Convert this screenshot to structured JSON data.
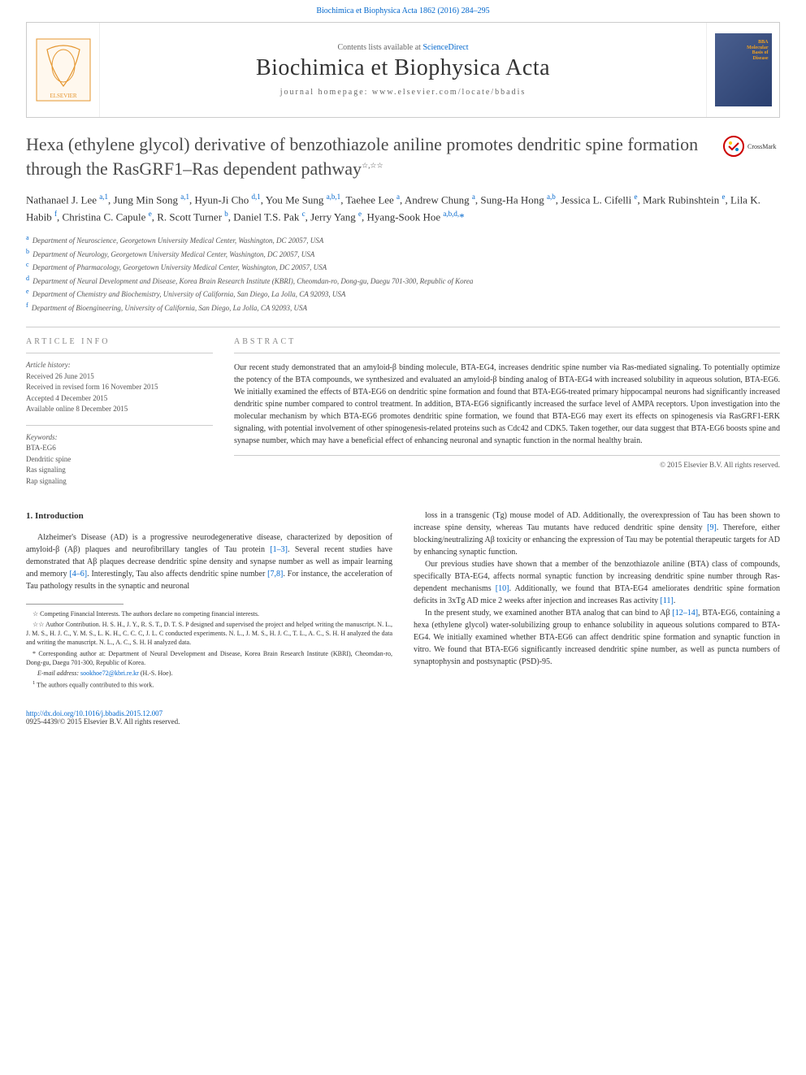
{
  "top_link": {
    "prefix": "",
    "text": "Biochimica et Biophysica Acta 1862 (2016) 284–295"
  },
  "header": {
    "contents_prefix": "Contents lists available at ",
    "contents_link": "ScienceDirect",
    "journal_title": "Biochimica et Biophysica Acta",
    "homepage_label": "journal homepage: www.elsevier.com/locate/bbadis",
    "cover_label_1": "BBA",
    "cover_label_2": "Molecular",
    "cover_label_3": "Basis of",
    "cover_label_4": "Disease"
  },
  "crossmark_label": "CrossMark",
  "article": {
    "title": "Hexa (ethylene glycol) derivative of benzothiazole aniline promotes dendritic spine formation through the RasGRF1–Ras dependent pathway",
    "title_stars": "☆,☆☆",
    "authors_html": "Nathanael J. Lee <sup>a,1</sup>, Jung Min Song <sup>a,1</sup>, Hyun-Ji Cho <sup>d,1</sup>, You Me Sung <sup>a,b,1</sup>, Taehee Lee <sup>a</sup>, Andrew Chung <sup>a</sup>, Sung-Ha Hong <sup>a,b</sup>, Jessica L. Cifelli <sup>e</sup>, Mark Rubinshtein <sup>e</sup>, Lila K. Habib <sup>f</sup>, Christina C. Capule <sup>e</sup>, R. Scott Turner <sup>b</sup>, Daniel T.S. Pak <sup>c</sup>, Jerry Yang <sup>e</sup>, Hyang-Sook Hoe <sup>a,b,d,</sup><span class='author-corr'>*</span>",
    "affiliations": [
      {
        "sup": "a",
        "text": "Department of Neuroscience, Georgetown University Medical Center, Washington, DC 20057, USA"
      },
      {
        "sup": "b",
        "text": "Department of Neurology, Georgetown University Medical Center, Washington, DC 20057, USA"
      },
      {
        "sup": "c",
        "text": "Department of Pharmacology, Georgetown University Medical Center, Washington, DC 20057, USA"
      },
      {
        "sup": "d",
        "text": "Department of Neural Development and Disease, Korea Brain Research Institute (KBRI), Cheomdan-ro, Dong-gu, Daegu 701-300, Republic of Korea"
      },
      {
        "sup": "e",
        "text": "Department of Chemistry and Biochemistry, University of California, San Diego, La Jolla, CA 92093, USA"
      },
      {
        "sup": "f",
        "text": "Department of Bioengineering, University of California, San Diego, La Jolla, CA 92093, USA"
      }
    ]
  },
  "info": {
    "heading": "article info",
    "history_label": "Article history:",
    "received": "Received 26 June 2015",
    "revised": "Received in revised form 16 November 2015",
    "accepted": "Accepted 4 December 2015",
    "online": "Available online 8 December 2015",
    "keywords_label": "Keywords:",
    "keywords": [
      "BTA-EG6",
      "Dendritic spine",
      "Ras signaling",
      "Rap signaling"
    ]
  },
  "abstract": {
    "heading": "abstract",
    "text": "Our recent study demonstrated that an amyloid-β binding molecule, BTA-EG4, increases dendritic spine number via Ras-mediated signaling. To potentially optimize the potency of the BTA compounds, we synthesized and evaluated an amyloid-β binding analog of BTA-EG4 with increased solubility in aqueous solution, BTA-EG6. We initially examined the effects of BTA-EG6 on dendritic spine formation and found that BTA-EG6-treated primary hippocampal neurons had significantly increased dendritic spine number compared to control treatment. In addition, BTA-EG6 significantly increased the surface level of AMPA receptors. Upon investigation into the molecular mechanism by which BTA-EG6 promotes dendritic spine formation, we found that BTA-EG6 may exert its effects on spinogenesis via RasGRF1-ERK signaling, with potential involvement of other spinogenesis-related proteins such as Cdc42 and CDK5. Taken together, our data suggest that BTA-EG6 boosts spine and synapse number, which may have a beneficial effect of enhancing neuronal and synaptic function in the normal healthy brain.",
    "copyright": "© 2015 Elsevier B.V. All rights reserved."
  },
  "body": {
    "heading": "1. Introduction",
    "p1": "Alzheimer's Disease (AD) is a progressive neurodegenerative disease, characterized by deposition of amyloid-β (Aβ) plaques and neurofibrillary tangles of Tau protein ",
    "c1": "[1–3]",
    "p1b": ". Several recent studies have demonstrated that Aβ plaques decrease dendritic spine density and synapse number as well as impair learning and memory ",
    "c2": "[4–6]",
    "p1c": ". Interestingly, Tau also affects dendritic spine number ",
    "c3": "[7,8]",
    "p1d": ". For instance, the acceleration of Tau pathology results in the synaptic and neuronal",
    "p2a": "loss in a transgenic (Tg) mouse model of AD. Additionally, the overexpression of Tau has been shown to increase spine density, whereas Tau mutants have reduced dendritic spine density ",
    "c4": "[9]",
    "p2b": ". Therefore, either blocking/neutralizing Aβ toxicity or enhancing the expression of Tau may be potential therapeutic targets for AD by enhancing synaptic function.",
    "p3a": "Our previous studies have shown that a member of the benzothiazole aniline (BTA) class of compounds, specifically BTA-EG4, affects normal synaptic function by increasing dendritic spine number through Ras-dependent mechanisms ",
    "c5": "[10]",
    "p3b": ". Additionally, we found that BTA-EG4 ameliorates dendritic spine formation deficits in 3xTg AD mice 2 weeks after injection and increases Ras activity ",
    "c6": "[11]",
    "p3c": ".",
    "p4a": "In the present study, we examined another BTA analog that can bind to Aβ ",
    "c7": "[12–14]",
    "p4b": ", BTA-EG6, containing a hexa (ethylene glycol) water-solubilizing group to enhance solubility in aqueous solutions compared to BTA-EG4. We initially examined whether BTA-EG6 can affect dendritic spine formation and synaptic function in vitro. We found that BTA-EG6 significantly increased dendritic spine number, as well as puncta numbers of synaptophysin and postsynaptic (PSD)-95."
  },
  "footnotes": {
    "f1_sym": "☆",
    "f1": " Competing Financial Interests. The authors declare no competing financial interests.",
    "f2_sym": "☆☆",
    "f2": " Author Contribution. H. S. H., J. Y., R. S. T., D. T. S. P designed and supervised the project and helped writing the manuscript. N. L., J. M. S., H. J. C., Y. M. S., L. K. H., C. C. C, J. L. C conducted experiments. N. L., J. M. S., H. J. C., T. L., A. C., S. H. H analyzed the data and writing the manuscript. N. L., A. C., S. H. H analyzed data.",
    "f3_sym": "*",
    "f3": " Corresponding author at: Department of Neural Development and Disease, Korea Brain Research Institute (KBRI), Cheomdan-ro, Dong-gu, Daegu 701-300, Republic of Korea.",
    "f4_label": "E-mail address: ",
    "f4_email": "sookhoe72@kbri.re.kr",
    "f4_suffix": " (H.-S. Hoe).",
    "f5_sym": "1",
    "f5": " The authors equally contributed to this work."
  },
  "footer": {
    "doi": "http://dx.doi.org/10.1016/j.bbadis.2015.12.007",
    "issn": "0925-4439/© 2015 Elsevier B.V. All rights reserved."
  },
  "colors": {
    "link": "#0066cc",
    "text": "#333333",
    "muted": "#888888",
    "border": "#cccccc",
    "elsevier_orange": "#ff6600",
    "crossmark_red": "#cc0000"
  }
}
